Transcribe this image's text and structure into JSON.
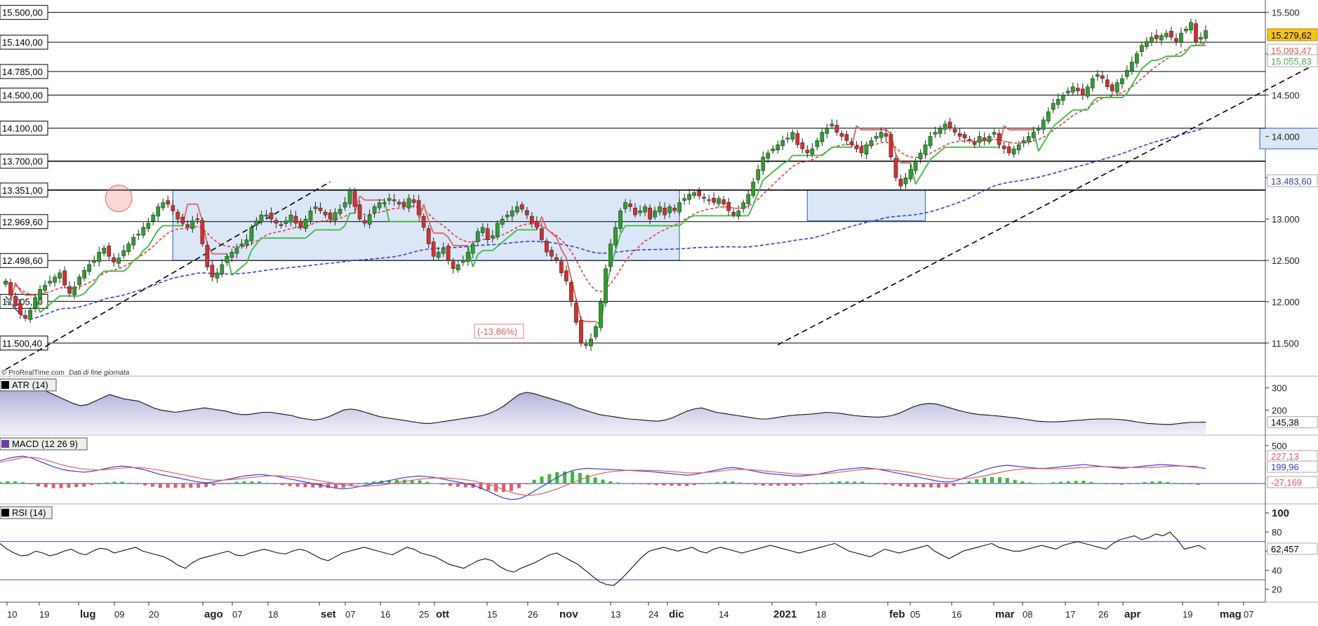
{
  "watermark": {
    "brand": "© ProRealTime.com",
    "note": "Dati di fine giornata"
  },
  "chart_data": [
    {
      "type": "candlestick",
      "panel": "price",
      "ylim": [
        11100,
        15650
      ],
      "y_ticks": [
        "15.500",
        "15.000",
        "14.500",
        "14.000",
        "13.500",
        "13.000",
        "12.500",
        "12.000",
        "11.500"
      ],
      "y_tick_values": [
        15500,
        15000,
        14500,
        14000,
        13500,
        13000,
        12500,
        12000,
        11500
      ],
      "horizontal_levels": [
        {
          "label": "15.500,00",
          "value": 15500
        },
        {
          "label": "15.140,00",
          "value": 15140
        },
        {
          "label": "14.785,00",
          "value": 14785
        },
        {
          "label": "14.500,00",
          "value": 14500
        },
        {
          "label": "14.100,00",
          "value": 14100
        },
        {
          "label": "13.700,00",
          "value": 13700
        },
        {
          "label": "13.351,00",
          "value": 13351
        },
        {
          "label": "12.969,60",
          "value": 12969.6
        },
        {
          "label": "12.498,60",
          "value": 12498.6
        },
        {
          "label": "12.005,10",
          "value": 12005.1
        },
        {
          "label": "11.500,40",
          "value": 11500.4
        }
      ],
      "price_markers": [
        {
          "label": "15.279,62",
          "value": 15279.62,
          "color": "#f5c518"
        },
        {
          "label": "15.093,47",
          "value": 15093.47,
          "color": "#e05a5a"
        },
        {
          "label": "15.055,83",
          "value": 15055.83,
          "color": "#4caf50"
        },
        {
          "label": "13.483,60",
          "value": 13483.6,
          "color": "#3b3bd1"
        }
      ],
      "annotation": {
        "label": "(-13,86%)",
        "color": "#e05a5a"
      },
      "series": [
        {
          "role": "price",
          "color_up": "#2e9e2e",
          "color_down": "#d03030",
          "close": [
            12250,
            12080,
            11950,
            11850,
            11800,
            11900,
            12050,
            12150,
            12200,
            12250,
            12300,
            12350,
            12200,
            12100,
            12180,
            12300,
            12380,
            12450,
            12500,
            12600,
            12650,
            12550,
            12480,
            12530,
            12620,
            12700,
            12780,
            12820,
            12900,
            12950,
            13050,
            13150,
            13200,
            13180,
            13100,
            13000,
            12950,
            12900,
            12980,
            13000,
            12700,
            12420,
            12300,
            12350,
            12450,
            12550,
            12600,
            12650,
            12700,
            12750,
            12900,
            12980,
            13050,
            13050,
            13000,
            12950,
            12920,
            12980,
            13050,
            12950,
            12900,
            13000,
            13100,
            13150,
            13100,
            13050,
            13000,
            13080,
            13120,
            13200,
            13350,
            13150,
            13000,
            12950,
            13050,
            13150,
            13200,
            13200,
            13250,
            13220,
            13180,
            13150,
            13250,
            13200,
            13050,
            12900,
            12700,
            12550,
            12600,
            12650,
            12500,
            12400,
            12450,
            12500,
            12600,
            12700,
            12850,
            12900,
            12750,
            12800,
            12950,
            13000,
            13050,
            13100,
            13150,
            13120,
            13050,
            12950,
            12900,
            12750,
            12600,
            12550,
            12500,
            12350,
            12250,
            12000,
            11750,
            11500,
            11480,
            11550,
            11700,
            12000,
            12400,
            12700,
            12900,
            13100,
            13200,
            13150,
            13050,
            13100,
            13150,
            13000,
            13100,
            13150,
            13050,
            13150,
            13100,
            13200,
            13250,
            13300,
            13320,
            13280,
            13250,
            13230,
            13200,
            13250,
            13180,
            13100,
            13050,
            13100,
            13200,
            13300,
            13450,
            13600,
            13750,
            13800,
            13850,
            13900,
            13950,
            13980,
            14050,
            13900,
            13850,
            13800,
            13850,
            13950,
            14050,
            14100,
            14150,
            14050,
            14000,
            13950,
            13900,
            13850,
            13800,
            13900,
            13950,
            14000,
            14050,
            14000,
            13750,
            13500,
            13400,
            13500,
            13600,
            13700,
            13800,
            13900,
            14000,
            14050,
            14100,
            14150,
            14100,
            14050,
            14000,
            13980,
            13950,
            13900,
            14000,
            13950,
            14000,
            14050,
            13900,
            13850,
            13800,
            13850,
            13900,
            13950,
            14000,
            14050,
            14100,
            14200,
            14300,
            14400,
            14450,
            14500,
            14550,
            14600,
            14550,
            14500,
            14600,
            14700,
            14750,
            14700,
            14600,
            14550,
            14650,
            14700,
            14800,
            14900,
            15000,
            15100,
            15150,
            15200,
            15180,
            15220,
            15250,
            15200,
            15150,
            15250,
            15300,
            15380,
            15150,
            15200,
            15280
          ]
        }
      ]
    },
    {
      "type": "area",
      "panel": "atr",
      "title": "ATR (14)",
      "ylim": [
        100,
        340
      ],
      "y_ticks": [
        "300",
        "200"
      ],
      "y_tick_values": [
        300,
        200
      ],
      "last_value": {
        "label": "145,38",
        "value": 145.38
      },
      "values": [
        330,
        320,
        315,
        310,
        305,
        300,
        290,
        275,
        260,
        245,
        230,
        220,
        225,
        240,
        255,
        270,
        260,
        250,
        245,
        240,
        225,
        210,
        200,
        195,
        190,
        195,
        200,
        205,
        210,
        205,
        200,
        195,
        185,
        180,
        180,
        185,
        190,
        190,
        185,
        180,
        175,
        165,
        160,
        155,
        160,
        170,
        185,
        200,
        205,
        200,
        190,
        180,
        170,
        165,
        160,
        155,
        150,
        145,
        140,
        140,
        145,
        150,
        155,
        160,
        165,
        170,
        175,
        185,
        200,
        220,
        245,
        270,
        280,
        275,
        265,
        255,
        245,
        235,
        225,
        210,
        200,
        190,
        180,
        175,
        170,
        165,
        160,
        158,
        155,
        152,
        150,
        155,
        165,
        180,
        195,
        205,
        210,
        200,
        190,
        185,
        180,
        175,
        170,
        165,
        160,
        160,
        165,
        170,
        175,
        178,
        180,
        182,
        185,
        190,
        188,
        185,
        180,
        175,
        172,
        170,
        168,
        170,
        175,
        185,
        200,
        215,
        225,
        230,
        228,
        220,
        210,
        200,
        192,
        185,
        180,
        178,
        175,
        172,
        168,
        165,
        160,
        155,
        150,
        148,
        147,
        148,
        150,
        153,
        155,
        158,
        160,
        160,
        160,
        158,
        155,
        150,
        145,
        140,
        138,
        136,
        135,
        138,
        142,
        145,
        145,
        146
      ]
    },
    {
      "type": "macd",
      "panel": "macd",
      "title": "MACD (12 26 9)",
      "ylim": [
        -230,
        600
      ],
      "y_ticks": [
        "500"
      ],
      "y_tick_values": [
        500
      ],
      "last_values": [
        {
          "label": "227,13",
          "value": 227.13,
          "color": "#e05a5a"
        },
        {
          "label": "199,96",
          "value": 199.96,
          "color": "#3b3bd1"
        },
        {
          "label": "-27,169",
          "value": -27.169,
          "color": "#e05a5a"
        }
      ],
      "macd": [
        300,
        330,
        350,
        360,
        340,
        300,
        260,
        220,
        190,
        170,
        160,
        150,
        160,
        180,
        200,
        220,
        230,
        220,
        200,
        180,
        150,
        120,
        100,
        80,
        60,
        40,
        20,
        10,
        20,
        40,
        60,
        80,
        100,
        110,
        120,
        110,
        100,
        80,
        60,
        40,
        20,
        0,
        -20,
        -40,
        -60,
        -70,
        -60,
        -40,
        -20,
        0,
        20,
        40,
        60,
        80,
        90,
        100,
        90,
        80,
        60,
        40,
        20,
        0,
        -20,
        -60,
        -100,
        -150,
        -190,
        -210,
        -200,
        -160,
        -100,
        -40,
        20,
        80,
        130,
        170,
        190,
        200,
        195,
        190,
        185,
        180,
        175,
        170,
        165,
        160,
        150,
        140,
        130,
        120,
        110,
        120,
        140,
        160,
        180,
        200,
        210,
        200,
        180,
        160,
        140,
        130,
        120,
        110,
        100,
        100,
        110,
        120,
        140,
        160,
        180,
        190,
        200,
        210,
        200,
        190,
        170,
        150,
        130,
        110,
        90,
        70,
        50,
        30,
        20,
        30,
        60,
        100,
        140,
        180,
        210,
        230,
        240,
        230,
        220,
        210,
        200,
        200,
        210,
        220,
        230,
        240,
        250,
        240,
        230,
        220,
        210,
        200,
        210,
        220,
        230,
        240,
        250,
        245,
        240,
        230,
        220,
        210,
        200
      ],
      "signal": [
        280,
        300,
        320,
        340,
        345,
        335,
        310,
        280,
        250,
        225,
        205,
        190,
        180,
        180,
        185,
        195,
        205,
        210,
        210,
        205,
        190,
        175,
        155,
        135,
        115,
        95,
        75,
        55,
        45,
        45,
        50,
        58,
        70,
        82,
        92,
        100,
        102,
        100,
        92,
        82,
        68,
        52,
        36,
        18,
        0,
        -15,
        -28,
        -35,
        -35,
        -28,
        -18,
        -4,
        12,
        28,
        44,
        58,
        68,
        74,
        74,
        70,
        62,
        50,
        36,
        14,
        -12,
        -44,
        -80,
        -114,
        -140,
        -155,
        -150,
        -132,
        -104,
        -70,
        -30,
        10,
        50,
        85,
        115,
        138,
        155,
        165,
        172,
        175,
        175,
        173,
        170,
        165,
        158,
        150,
        142,
        140,
        143,
        150,
        160,
        172,
        182,
        186,
        184,
        178,
        168,
        158,
        148,
        138,
        128,
        122,
        120,
        122,
        128,
        138,
        150,
        162,
        174,
        185,
        190,
        190,
        185,
        176,
        164,
        150,
        135,
        118,
        100,
        84,
        70,
        62,
        62,
        70,
        84,
        102,
        124,
        146,
        166,
        182,
        192,
        196,
        196,
        194,
        194,
        196,
        200,
        206,
        212,
        218,
        222,
        222,
        220,
        216,
        212,
        210,
        210,
        213,
        218,
        224,
        230,
        230,
        228,
        227
      ]
    },
    {
      "type": "line",
      "panel": "rsi",
      "title": "RSI (14)",
      "ylim": [
        8,
        108
      ],
      "y_ticks": [
        "100",
        "80",
        "60",
        "40",
        "20"
      ],
      "y_tick_values": [
        100,
        80,
        60,
        40,
        20
      ],
      "bands": [
        70,
        30
      ],
      "last_value": {
        "label": "62,457",
        "value": 62.457
      },
      "values": [
        68,
        62,
        58,
        55,
        56,
        60,
        58,
        55,
        57,
        60,
        62,
        58,
        56,
        60,
        63,
        62,
        58,
        60,
        62,
        64,
        60,
        58,
        56,
        54,
        50,
        45,
        42,
        48,
        52,
        54,
        56,
        58,
        60,
        56,
        55,
        58,
        60,
        62,
        60,
        58,
        57,
        60,
        62,
        60,
        56,
        52,
        50,
        54,
        58,
        60,
        62,
        64,
        62,
        60,
        58,
        56,
        60,
        64,
        62,
        58,
        56,
        54,
        50,
        46,
        44,
        42,
        46,
        50,
        52,
        50,
        44,
        40,
        38,
        42,
        45,
        48,
        52,
        56,
        58,
        54,
        50,
        46,
        40,
        34,
        28,
        25,
        24,
        30,
        38,
        46,
        54,
        60,
        62,
        64,
        62,
        60,
        62,
        64,
        60,
        58,
        62,
        64,
        62,
        60,
        58,
        60,
        62,
        64,
        66,
        64,
        62,
        60,
        58,
        60,
        62,
        64,
        66,
        68,
        64,
        60,
        58,
        56,
        54,
        58,
        62,
        60,
        58,
        60,
        62,
        64,
        66,
        60,
        56,
        52,
        56,
        60,
        62,
        64,
        66,
        68,
        64,
        62,
        60,
        60,
        62,
        64,
        66,
        64,
        62,
        66,
        68,
        70,
        68,
        66,
        64,
        62,
        68,
        72,
        74,
        76,
        72,
        74,
        78,
        76,
        80,
        72,
        62,
        64,
        66,
        62
      ]
    }
  ],
  "x_axis": {
    "labels": [
      "10",
      "19",
      "lug",
      "09",
      "20",
      "ago",
      "07",
      "18",
      "set",
      "07",
      "16",
      "25",
      "ott",
      "15",
      "26",
      "nov",
      "13",
      "24",
      "dic",
      "14",
      "2021",
      "18",
      "feb",
      "05",
      "16",
      "mar",
      "08",
      "17",
      "26",
      "apr",
      "19",
      "mag",
      "07"
    ]
  }
}
